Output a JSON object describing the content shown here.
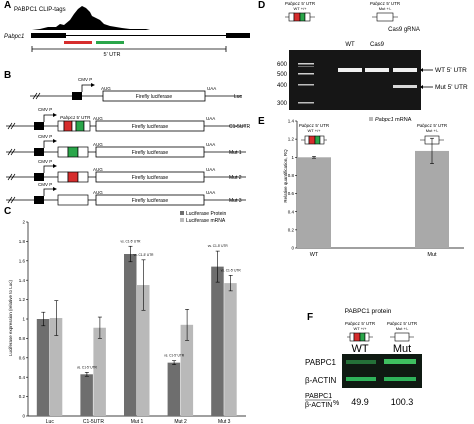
{
  "panelA": {
    "letter": "A",
    "track_label": "PABPC1 CLIP-tags",
    "gene_label": "Pabpc1",
    "utr_label": "5' UTR",
    "colors": {
      "red": "#d62d2d",
      "green": "#2aa64a"
    }
  },
  "panelB": {
    "letter": "B",
    "cmv": "CMV P",
    "aug": "AUG",
    "uaa": "UAA",
    "fluc": "Firefly luciferase",
    "utr_label_gene": "Pabpc1",
    "utr_label_suffix": " 5' UTR",
    "constructs": [
      "Luc",
      "C1-5UTR",
      "Mut 1",
      "Mut 2",
      "Mut 3"
    ]
  },
  "panelC": {
    "letter": "C",
    "significance": [
      "vs. Luc",
      "vs. C1-5' UTR",
      "vs. C1-5' UTR",
      "vs. C1-5' UTR",
      "vs. C1-5' UTR"
    ]
  },
  "chart_data": {
    "type": "bar",
    "categories": [
      "Luc",
      "C1-5UTR",
      "Mut 1",
      "Mut 2",
      "Mut 3"
    ],
    "series": [
      {
        "name": "Luciferase Protein",
        "color": "#6e6e6e",
        "values": [
          1.0,
          0.43,
          1.67,
          0.55,
          1.54
        ],
        "errors": [
          0.07,
          0.02,
          0.08,
          0.02,
          0.16
        ]
      },
      {
        "name": "Luciferase mRNA",
        "color": "#b9b9b9",
        "values": [
          1.01,
          0.91,
          1.35,
          0.94,
          1.37
        ],
        "errors": [
          0.18,
          0.11,
          0.26,
          0.16,
          0.08
        ]
      }
    ],
    "ylabel": "Luciferase expression (relative to Luc)",
    "ylim": [
      0,
      2
    ],
    "yticks": [
      "0",
      "0.2",
      "0.4",
      "0.6",
      "0.8",
      "1",
      "1.2",
      "1.4",
      "1.6",
      "1.8",
      "2"
    ],
    "legend": "top-right"
  },
  "panelD": {
    "letter": "D",
    "wt_gene": "Pabpc1",
    "wt_suffix": " 5' UTR",
    "wt_geno": "WT +/+",
    "mut_gene": "Pabpc1",
    "mut_suffix": " 5' UTR",
    "mut_geno": "Mut +/-",
    "lanes": [
      "WT",
      "Cas9",
      "Cas9 gRNA"
    ],
    "ladder": [
      "600",
      "500",
      "400",
      "300"
    ],
    "band_wt": "WT 5' UTR",
    "band_mut": "Mut 5' UTR"
  },
  "panelE": {
    "letter": "E",
    "legend_gene": "Pabpc1",
    "legend_suffix": " mRNA",
    "ylabel": "Relative quantification, RQ",
    "yticks": [
      "0",
      "0.2",
      "0.4",
      "0.6",
      "0.8",
      "1",
      "1.2",
      "1.4"
    ],
    "categories": [
      "WT",
      "Mut"
    ],
    "values": [
      1.0,
      1.07
    ],
    "errors": [
      0.01,
      0.14
    ],
    "ylim": [
      0,
      1.4
    ]
  },
  "panelF": {
    "letter": "F",
    "title": "PABPC1 protein",
    "wt_gene": "Pabpc1",
    "wt_suffix": " 5' UTR",
    "wt_geno": "WT +/+",
    "mut_gene": "Pabpc1",
    "mut_suffix": " 5' UTR",
    "mut_geno": "Mut +/-",
    "lane_wt": "WT",
    "lane_mut": "Mut",
    "row1": "PABPC1",
    "row2": "β-ACTIN",
    "ratio_label_top": "PABPC1",
    "ratio_label_bottom": "β-ACTIN",
    "ratio_pct": "%",
    "ratio_wt": "49.9",
    "ratio_mut": "100.3"
  }
}
